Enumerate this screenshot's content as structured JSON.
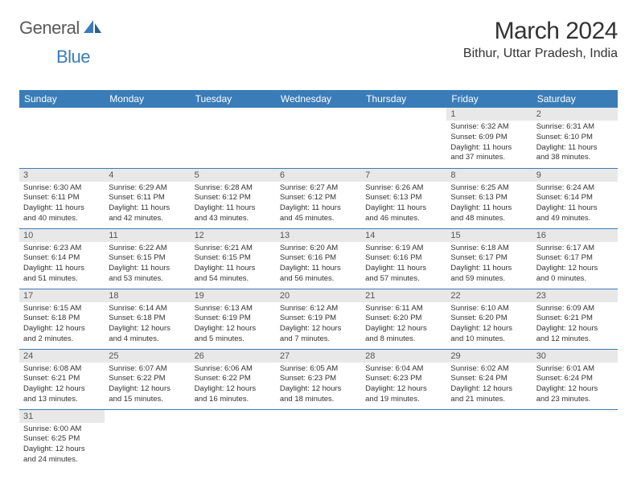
{
  "logo": {
    "textGeneral": "General",
    "textBlue": "Blue"
  },
  "title": "March 2024",
  "location": "Bithur, Uttar Pradesh, India",
  "colors": {
    "headerBg": "#3a7cb8",
    "headerFg": "#ffffff",
    "dayBg": "#e8e8e8",
    "border": "#3a7cb8",
    "text": "#333333"
  },
  "dayHeaders": [
    "Sunday",
    "Monday",
    "Tuesday",
    "Wednesday",
    "Thursday",
    "Friday",
    "Saturday"
  ],
  "weeks": [
    [
      null,
      null,
      null,
      null,
      null,
      {
        "n": "1",
        "sr": "Sunrise: 6:32 AM",
        "ss": "Sunset: 6:09 PM",
        "d1": "Daylight: 11 hours",
        "d2": "and 37 minutes."
      },
      {
        "n": "2",
        "sr": "Sunrise: 6:31 AM",
        "ss": "Sunset: 6:10 PM",
        "d1": "Daylight: 11 hours",
        "d2": "and 38 minutes."
      }
    ],
    [
      {
        "n": "3",
        "sr": "Sunrise: 6:30 AM",
        "ss": "Sunset: 6:11 PM",
        "d1": "Daylight: 11 hours",
        "d2": "and 40 minutes."
      },
      {
        "n": "4",
        "sr": "Sunrise: 6:29 AM",
        "ss": "Sunset: 6:11 PM",
        "d1": "Daylight: 11 hours",
        "d2": "and 42 minutes."
      },
      {
        "n": "5",
        "sr": "Sunrise: 6:28 AM",
        "ss": "Sunset: 6:12 PM",
        "d1": "Daylight: 11 hours",
        "d2": "and 43 minutes."
      },
      {
        "n": "6",
        "sr": "Sunrise: 6:27 AM",
        "ss": "Sunset: 6:12 PM",
        "d1": "Daylight: 11 hours",
        "d2": "and 45 minutes."
      },
      {
        "n": "7",
        "sr": "Sunrise: 6:26 AM",
        "ss": "Sunset: 6:13 PM",
        "d1": "Daylight: 11 hours",
        "d2": "and 46 minutes."
      },
      {
        "n": "8",
        "sr": "Sunrise: 6:25 AM",
        "ss": "Sunset: 6:13 PM",
        "d1": "Daylight: 11 hours",
        "d2": "and 48 minutes."
      },
      {
        "n": "9",
        "sr": "Sunrise: 6:24 AM",
        "ss": "Sunset: 6:14 PM",
        "d1": "Daylight: 11 hours",
        "d2": "and 49 minutes."
      }
    ],
    [
      {
        "n": "10",
        "sr": "Sunrise: 6:23 AM",
        "ss": "Sunset: 6:14 PM",
        "d1": "Daylight: 11 hours",
        "d2": "and 51 minutes."
      },
      {
        "n": "11",
        "sr": "Sunrise: 6:22 AM",
        "ss": "Sunset: 6:15 PM",
        "d1": "Daylight: 11 hours",
        "d2": "and 53 minutes."
      },
      {
        "n": "12",
        "sr": "Sunrise: 6:21 AM",
        "ss": "Sunset: 6:15 PM",
        "d1": "Daylight: 11 hours",
        "d2": "and 54 minutes."
      },
      {
        "n": "13",
        "sr": "Sunrise: 6:20 AM",
        "ss": "Sunset: 6:16 PM",
        "d1": "Daylight: 11 hours",
        "d2": "and 56 minutes."
      },
      {
        "n": "14",
        "sr": "Sunrise: 6:19 AM",
        "ss": "Sunset: 6:16 PM",
        "d1": "Daylight: 11 hours",
        "d2": "and 57 minutes."
      },
      {
        "n": "15",
        "sr": "Sunrise: 6:18 AM",
        "ss": "Sunset: 6:17 PM",
        "d1": "Daylight: 11 hours",
        "d2": "and 59 minutes."
      },
      {
        "n": "16",
        "sr": "Sunrise: 6:17 AM",
        "ss": "Sunset: 6:17 PM",
        "d1": "Daylight: 12 hours",
        "d2": "and 0 minutes."
      }
    ],
    [
      {
        "n": "17",
        "sr": "Sunrise: 6:15 AM",
        "ss": "Sunset: 6:18 PM",
        "d1": "Daylight: 12 hours",
        "d2": "and 2 minutes."
      },
      {
        "n": "18",
        "sr": "Sunrise: 6:14 AM",
        "ss": "Sunset: 6:18 PM",
        "d1": "Daylight: 12 hours",
        "d2": "and 4 minutes."
      },
      {
        "n": "19",
        "sr": "Sunrise: 6:13 AM",
        "ss": "Sunset: 6:19 PM",
        "d1": "Daylight: 12 hours",
        "d2": "and 5 minutes."
      },
      {
        "n": "20",
        "sr": "Sunrise: 6:12 AM",
        "ss": "Sunset: 6:19 PM",
        "d1": "Daylight: 12 hours",
        "d2": "and 7 minutes."
      },
      {
        "n": "21",
        "sr": "Sunrise: 6:11 AM",
        "ss": "Sunset: 6:20 PM",
        "d1": "Daylight: 12 hours",
        "d2": "and 8 minutes."
      },
      {
        "n": "22",
        "sr": "Sunrise: 6:10 AM",
        "ss": "Sunset: 6:20 PM",
        "d1": "Daylight: 12 hours",
        "d2": "and 10 minutes."
      },
      {
        "n": "23",
        "sr": "Sunrise: 6:09 AM",
        "ss": "Sunset: 6:21 PM",
        "d1": "Daylight: 12 hours",
        "d2": "and 12 minutes."
      }
    ],
    [
      {
        "n": "24",
        "sr": "Sunrise: 6:08 AM",
        "ss": "Sunset: 6:21 PM",
        "d1": "Daylight: 12 hours",
        "d2": "and 13 minutes."
      },
      {
        "n": "25",
        "sr": "Sunrise: 6:07 AM",
        "ss": "Sunset: 6:22 PM",
        "d1": "Daylight: 12 hours",
        "d2": "and 15 minutes."
      },
      {
        "n": "26",
        "sr": "Sunrise: 6:06 AM",
        "ss": "Sunset: 6:22 PM",
        "d1": "Daylight: 12 hours",
        "d2": "and 16 minutes."
      },
      {
        "n": "27",
        "sr": "Sunrise: 6:05 AM",
        "ss": "Sunset: 6:23 PM",
        "d1": "Daylight: 12 hours",
        "d2": "and 18 minutes."
      },
      {
        "n": "28",
        "sr": "Sunrise: 6:04 AM",
        "ss": "Sunset: 6:23 PM",
        "d1": "Daylight: 12 hours",
        "d2": "and 19 minutes."
      },
      {
        "n": "29",
        "sr": "Sunrise: 6:02 AM",
        "ss": "Sunset: 6:24 PM",
        "d1": "Daylight: 12 hours",
        "d2": "and 21 minutes."
      },
      {
        "n": "30",
        "sr": "Sunrise: 6:01 AM",
        "ss": "Sunset: 6:24 PM",
        "d1": "Daylight: 12 hours",
        "d2": "and 23 minutes."
      }
    ],
    [
      {
        "n": "31",
        "sr": "Sunrise: 6:00 AM",
        "ss": "Sunset: 6:25 PM",
        "d1": "Daylight: 12 hours",
        "d2": "and 24 minutes."
      },
      null,
      null,
      null,
      null,
      null,
      null
    ]
  ]
}
